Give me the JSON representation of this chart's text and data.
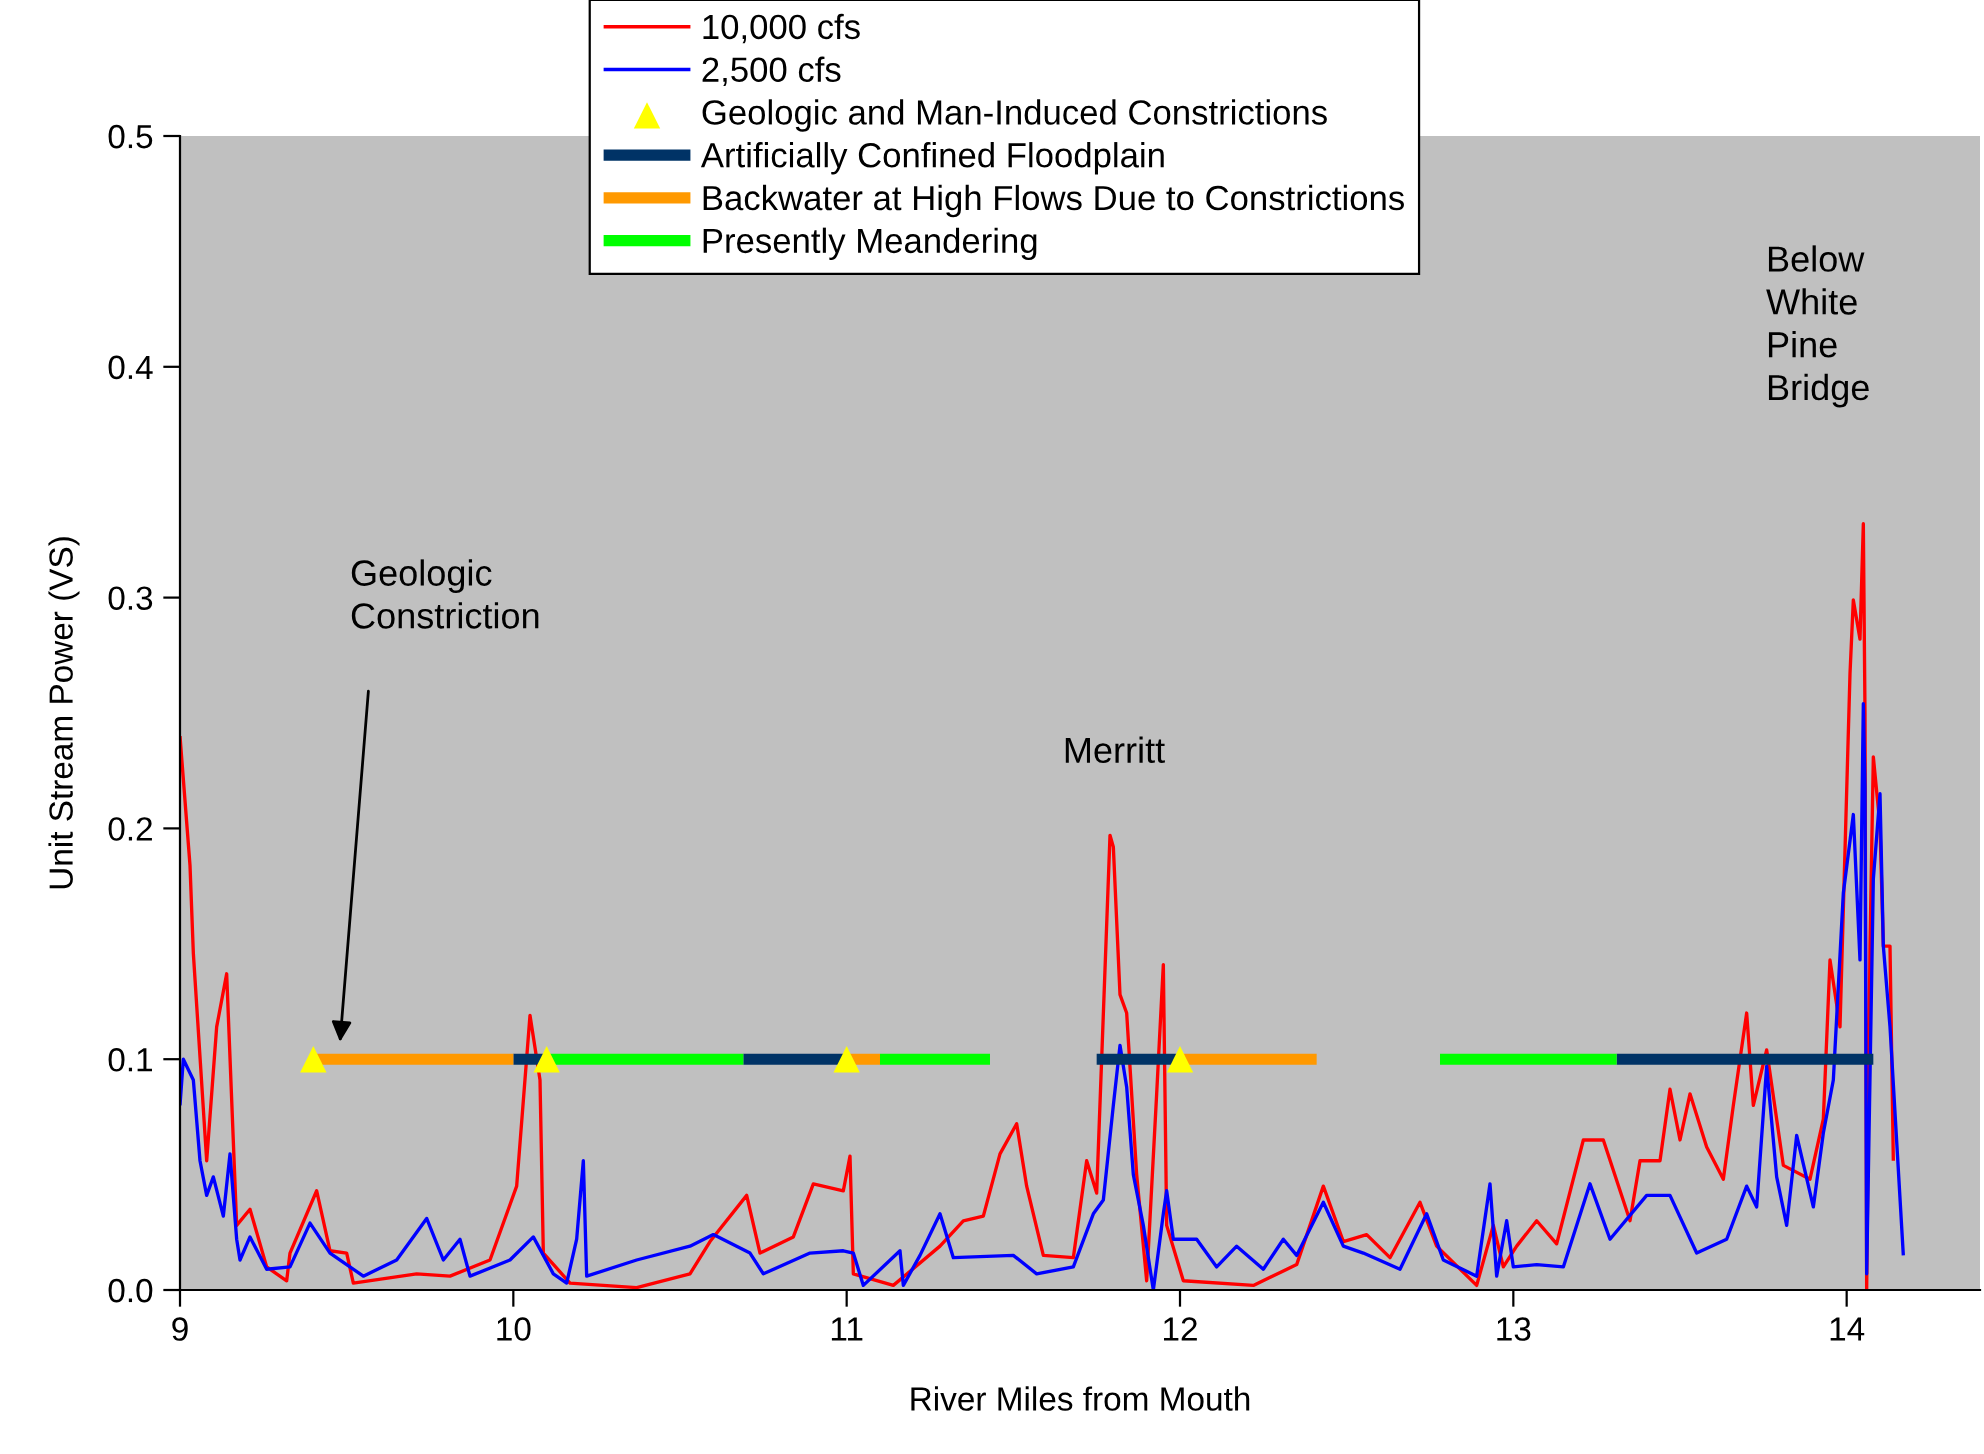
{
  "chart_data": {
    "type": "line",
    "xlabel": "River Miles from Mouth",
    "ylabel": "Unit Stream Power (VS)",
    "xlim": [
      9,
      14.4
    ],
    "xticks": [
      9,
      10,
      11,
      12,
      13,
      14
    ],
    "ylim": [
      0,
      0.5
    ],
    "yticks": [
      {
        "value": 0,
        "label": "0.0"
      },
      {
        "value": 0.1,
        "label": "0.1"
      },
      {
        "value": 0.2,
        "label": "0.2"
      },
      {
        "value": 0.3,
        "label": "0.3"
      },
      {
        "value": 0.4,
        "label": "0.4"
      },
      {
        "value": 0.5,
        "label": "0.5"
      }
    ],
    "grid": false,
    "legend": "top",
    "annotations": [
      "Geologic\nConstriction",
      "Merritt",
      "Below\nWhite\nPine\nBridge"
    ],
    "series": [
      {
        "name": "10,000 cfs",
        "color": "#ff0000",
        "x": [
          9.0,
          9.03,
          9.04,
          9.08,
          9.11,
          9.14,
          9.17,
          9.21,
          9.26,
          9.32,
          9.33,
          9.41,
          9.45,
          9.5,
          9.52,
          9.71,
          9.81,
          9.93,
          10.01,
          10.05,
          10.08,
          10.09,
          10.17,
          10.37,
          10.53,
          10.59,
          10.7,
          10.74,
          10.84,
          10.9,
          10.99,
          11.01,
          11.02,
          11.14,
          11.28,
          11.35,
          11.41,
          11.46,
          11.51,
          11.54,
          11.59,
          11.68,
          11.72,
          11.75,
          11.79,
          11.8,
          11.82,
          11.84,
          11.87,
          11.9,
          11.93,
          11.95,
          11.96,
          12.01,
          12.22,
          12.35,
          12.43,
          12.49,
          12.56,
          12.63,
          12.72,
          12.77,
          12.89,
          12.94,
          12.97,
          13.01,
          13.07,
          13.13,
          13.21,
          13.27,
          13.35,
          13.38,
          13.44,
          13.47,
          13.5,
          13.53,
          13.58,
          13.63,
          13.66,
          13.7,
          13.72,
          13.76,
          13.81,
          13.89,
          13.93,
          13.95,
          13.98,
          14.01,
          14.02,
          14.04,
          14.05,
          14.055,
          14.06,
          14.07,
          14.08,
          14.1,
          14.11,
          14.13,
          14.14
        ],
        "values": [
          0.24,
          0.184,
          0.146,
          0.056,
          0.114,
          0.137,
          0.028,
          0.035,
          0.01,
          0.004,
          0.016,
          0.043,
          0.017,
          0.016,
          0.003,
          0.007,
          0.006,
          0.013,
          0.045,
          0.119,
          0.091,
          0.016,
          0.003,
          0.001,
          0.007,
          0.021,
          0.041,
          0.016,
          0.023,
          0.046,
          0.043,
          0.058,
          0.007,
          0.002,
          0.019,
          0.03,
          0.032,
          0.059,
          0.072,
          0.045,
          0.015,
          0.014,
          0.056,
          0.042,
          0.197,
          0.192,
          0.128,
          0.12,
          0.05,
          0.004,
          0.085,
          0.141,
          0.028,
          0.004,
          0.002,
          0.011,
          0.045,
          0.021,
          0.024,
          0.014,
          0.038,
          0.019,
          0.002,
          0.028,
          0.01,
          0.019,
          0.03,
          0.02,
          0.065,
          0.065,
          0.03,
          0.056,
          0.056,
          0.087,
          0.065,
          0.085,
          0.062,
          0.048,
          0.08,
          0.12,
          0.08,
          0.104,
          0.054,
          0.048,
          0.074,
          0.143,
          0.114,
          0.267,
          0.299,
          0.282,
          0.332,
          0.25,
          0.0,
          0.149,
          0.231,
          0.201,
          0.149,
          0.149,
          0.056
        ]
      },
      {
        "name": "2,500 cfs",
        "color": "#0000ff",
        "x": [
          9.0,
          9.01,
          9.04,
          9.06,
          9.08,
          9.1,
          9.13,
          9.15,
          9.17,
          9.18,
          9.21,
          9.26,
          9.33,
          9.39,
          9.45,
          9.55,
          9.65,
          9.74,
          9.79,
          9.84,
          9.87,
          9.99,
          10.06,
          10.12,
          10.16,
          10.19,
          10.21,
          10.22,
          10.37,
          10.53,
          10.6,
          10.71,
          10.75,
          10.89,
          10.99,
          11.02,
          11.05,
          11.16,
          11.17,
          11.22,
          11.28,
          11.32,
          11.5,
          11.57,
          11.68,
          11.74,
          11.77,
          11.8,
          11.82,
          11.84,
          11.86,
          11.89,
          11.92,
          11.95,
          11.96,
          11.98,
          12.05,
          12.11,
          12.17,
          12.25,
          12.31,
          12.35,
          12.43,
          12.49,
          12.55,
          12.66,
          12.74,
          12.79,
          12.89,
          12.93,
          12.95,
          12.98,
          13.0,
          13.07,
          13.15,
          13.23,
          13.29,
          13.4,
          13.47,
          13.55,
          13.64,
          13.7,
          13.73,
          13.76,
          13.79,
          13.82,
          13.85,
          13.9,
          13.93,
          13.96,
          13.99,
          14.02,
          14.04,
          14.05,
          14.055,
          14.06,
          14.08,
          14.1,
          14.11,
          14.13,
          14.17
        ],
        "values": [
          0.08,
          0.1,
          0.091,
          0.056,
          0.041,
          0.049,
          0.032,
          0.059,
          0.022,
          0.013,
          0.023,
          0.009,
          0.01,
          0.029,
          0.016,
          0.006,
          0.013,
          0.031,
          0.013,
          0.022,
          0.006,
          0.013,
          0.023,
          0.007,
          0.003,
          0.022,
          0.056,
          0.006,
          0.013,
          0.019,
          0.024,
          0.016,
          0.007,
          0.016,
          0.017,
          0.016,
          0.002,
          0.017,
          0.002,
          0.015,
          0.033,
          0.014,
          0.015,
          0.007,
          0.01,
          0.033,
          0.039,
          0.08,
          0.106,
          0.088,
          0.05,
          0.028,
          0.0,
          0.033,
          0.043,
          0.022,
          0.022,
          0.01,
          0.019,
          0.009,
          0.022,
          0.015,
          0.038,
          0.019,
          0.016,
          0.009,
          0.033,
          0.013,
          0.006,
          0.046,
          0.006,
          0.03,
          0.01,
          0.011,
          0.01,
          0.046,
          0.022,
          0.041,
          0.041,
          0.016,
          0.022,
          0.045,
          0.036,
          0.097,
          0.049,
          0.028,
          0.067,
          0.036,
          0.068,
          0.091,
          0.172,
          0.206,
          0.143,
          0.254,
          0.218,
          0.007,
          0.178,
          0.215,
          0.149,
          0.114,
          0.015
        ]
      },
      {
        "name": "Geologic and Man-Induced Constrictions",
        "color": "#ffff00",
        "type": "scatter",
        "marker": "triangle",
        "x": [
          9.4,
          10.1,
          11.0,
          12.0
        ],
        "values": [
          0.1,
          0.1,
          0.1,
          0.1
        ]
      },
      {
        "name": "Artificially Confined Floodplain",
        "color": "#003366",
        "x": [
          10.0,
          10.1
        ],
        "values": [
          0.1,
          0.1
        ]
      },
      {
        "color": "#003366",
        "x": [
          10.69,
          11.0
        ],
        "values": [
          0.1,
          0.1
        ]
      },
      {
        "color": "#003366",
        "x": [
          11.75,
          12.0
        ],
        "values": [
          0.1,
          0.1
        ]
      },
      {
        "color": "#003366",
        "x": [
          13.31,
          14.08
        ],
        "values": [
          0.1,
          0.1
        ]
      },
      {
        "name": "Backwater at High Flows Due to Constrictions",
        "color": "#ff9900",
        "x": [
          9.4,
          10.0
        ],
        "values": [
          0.1,
          0.1
        ]
      },
      {
        "color": "#ff9900",
        "x": [
          11.0,
          11.1
        ],
        "values": [
          0.1,
          0.1
        ]
      },
      {
        "color": "#ff9900",
        "x": [
          12.0,
          12.41
        ],
        "values": [
          0.1,
          0.1
        ]
      },
      {
        "name": "Presently Meandering",
        "color": "#00ff00",
        "x": [
          10.1,
          10.69
        ],
        "values": [
          0.1,
          0.1
        ]
      },
      {
        "color": "#00ff00",
        "x": [
          11.1,
          11.43
        ],
        "values": [
          0.1,
          0.1
        ]
      },
      {
        "color": "#00ff00",
        "x": [
          12.78,
          13.31
        ],
        "values": [
          0.1,
          0.1
        ]
      }
    ]
  }
}
